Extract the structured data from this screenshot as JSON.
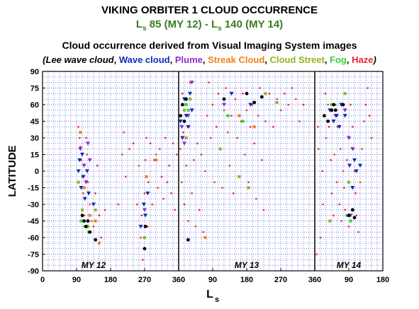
{
  "header": {
    "title": "VIKING ORBITER 1 CLOUD OCCURRENCE",
    "subtitle_ls1": "L",
    "subtitle_s1": "s",
    "subtitle_mid": "85 (MY 12) - L",
    "subtitle_s2": "s",
    "subtitle_end": "140 (MY 14)",
    "description": "Cloud occurrence derived from Visual Imaging System images"
  },
  "legend": {
    "open": "(",
    "close": ")",
    "items": [
      {
        "label": "Lee wave cloud",
        "color": "#000000",
        "italic": true
      },
      {
        "label": "Wave cloud",
        "color": "#0a2fb4"
      },
      {
        "label": "Plume",
        "color": "#8b2fd0"
      },
      {
        "label": "Streak Cloud",
        "color": "#ef7f1a"
      },
      {
        "label": "Cloud Street",
        "color": "#8fb520"
      },
      {
        "label": "Fog",
        "color": "#39d139"
      },
      {
        "label": "Haze",
        "color": "#e8262a"
      }
    ]
  },
  "chart_data": {
    "type": "scatter",
    "title": "VIKING ORBITER 1 CLOUD OCCURRENCE",
    "xlabel": "L",
    "xlabel_sub": "s",
    "ylabel": "LATITUDE",
    "x_ticks": [
      "0",
      "90",
      "180",
      "270",
      "360",
      "90",
      "180",
      "270",
      "360",
      "90",
      "180"
    ],
    "y_ticks": [
      "90",
      "75",
      "60",
      "45",
      "30",
      "15",
      "0",
      "-15",
      "-30",
      "-45",
      "-60",
      "-75",
      "-90"
    ],
    "x_continuous_range": [
      0,
      900
    ],
    "ylim": [
      -90,
      90
    ],
    "grid": true,
    "year_dividers_at_continuous_ls": [
      360,
      720
    ],
    "year_labels": [
      {
        "label": "MY 12",
        "at_continuous_ls": 135
      },
      {
        "label": "MY 13",
        "at_continuous_ls": 540
      },
      {
        "label": "MY 14",
        "at_continuous_ls": 810
      }
    ],
    "series": [
      {
        "name": "Haze",
        "color": "#e8262a",
        "marker": "dot",
        "points": [
          [
            95,
            40
          ],
          [
            98,
            30
          ],
          [
            100,
            22
          ],
          [
            102,
            10
          ],
          [
            105,
            -5
          ],
          [
            108,
            -20
          ],
          [
            110,
            -40
          ],
          [
            115,
            30
          ],
          [
            118,
            15
          ],
          [
            120,
            -10
          ],
          [
            125,
            -30
          ],
          [
            128,
            -55
          ],
          [
            130,
            -45
          ],
          [
            135,
            -50
          ],
          [
            140,
            -20
          ],
          [
            145,
            5
          ],
          [
            150,
            -40
          ],
          [
            155,
            -60
          ],
          [
            165,
            -35
          ],
          [
            200,
            -30
          ],
          [
            210,
            15
          ],
          [
            215,
            35
          ],
          [
            220,
            -5
          ],
          [
            230,
            20
          ],
          [
            240,
            25
          ],
          [
            250,
            -30
          ],
          [
            255,
            5
          ],
          [
            260,
            -60
          ],
          [
            262,
            -40
          ],
          [
            265,
            -80
          ],
          [
            268,
            -70
          ],
          [
            270,
            -20
          ],
          [
            272,
            10
          ],
          [
            275,
            30
          ],
          [
            278,
            -50
          ],
          [
            280,
            -10
          ],
          [
            285,
            25
          ],
          [
            290,
            -30
          ],
          [
            295,
            10
          ],
          [
            300,
            15
          ],
          [
            305,
            -15
          ],
          [
            310,
            20
          ],
          [
            315,
            -5
          ],
          [
            320,
            -25
          ],
          [
            325,
            30
          ],
          [
            330,
            -10
          ],
          [
            335,
            5
          ],
          [
            340,
            -20
          ],
          [
            345,
            25
          ],
          [
            350,
            -35
          ],
          [
            355,
            15
          ],
          [
            362,
            50
          ],
          [
            365,
            20
          ],
          [
            368,
            -10
          ],
          [
            370,
            70
          ],
          [
            372,
            35
          ],
          [
            375,
            -30
          ],
          [
            378,
            60
          ],
          [
            380,
            5
          ],
          [
            385,
            -45
          ],
          [
            388,
            40
          ],
          [
            390,
            80
          ],
          [
            395,
            -20
          ],
          [
            400,
            10
          ],
          [
            405,
            -50
          ],
          [
            410,
            25
          ],
          [
            415,
            -35
          ],
          [
            420,
            15
          ],
          [
            425,
            -55
          ],
          [
            430,
            0
          ],
          [
            435,
            50
          ],
          [
            440,
            80
          ],
          [
            445,
            30
          ],
          [
            450,
            60
          ],
          [
            455,
            -10
          ],
          [
            460,
            40
          ],
          [
            465,
            70
          ],
          [
            470,
            20
          ],
          [
            475,
            -15
          ],
          [
            480,
            55
          ],
          [
            485,
            75
          ],
          [
            490,
            35
          ],
          [
            495,
            5
          ],
          [
            500,
            50
          ],
          [
            505,
            -20
          ],
          [
            510,
            65
          ],
          [
            515,
            30
          ],
          [
            520,
            -5
          ],
          [
            525,
            45
          ],
          [
            530,
            70
          ],
          [
            535,
            15
          ],
          [
            540,
            55
          ],
          [
            545,
            -10
          ],
          [
            550,
            40
          ],
          [
            555,
            60
          ],
          [
            560,
            25
          ],
          [
            565,
            -25
          ],
          [
            570,
            50
          ],
          [
            575,
            75
          ],
          [
            580,
            10
          ],
          [
            585,
            -35
          ],
          [
            590,
            45
          ],
          [
            600,
            70
          ],
          [
            610,
            40
          ],
          [
            620,
            65
          ],
          [
            630,
            55
          ],
          [
            640,
            70
          ],
          [
            650,
            60
          ],
          [
            660,
            75
          ],
          [
            670,
            65
          ],
          [
            680,
            45
          ],
          [
            690,
            60
          ],
          [
            725,
            -75
          ],
          [
            728,
            40
          ],
          [
            730,
            20
          ],
          [
            735,
            -60
          ],
          [
            740,
            0
          ],
          [
            742,
            -30
          ],
          [
            745,
            50
          ],
          [
            748,
            70
          ],
          [
            750,
            30
          ],
          [
            755,
            60
          ],
          [
            758,
            40
          ],
          [
            762,
            10
          ],
          [
            765,
            -20
          ],
          [
            770,
            -40
          ],
          [
            772,
            15
          ],
          [
            775,
            60
          ],
          [
            778,
            -10
          ],
          [
            780,
            40
          ],
          [
            785,
            -30
          ],
          [
            788,
            20
          ],
          [
            790,
            -45
          ],
          [
            795,
            0
          ],
          [
            798,
            -15
          ],
          [
            800,
            -35
          ],
          [
            805,
            10
          ],
          [
            810,
            -50
          ],
          [
            812,
            30
          ],
          [
            815,
            60
          ],
          [
            820,
            40
          ],
          [
            822,
            20
          ],
          [
            825,
            0
          ],
          [
            828,
            -20
          ],
          [
            830,
            -40
          ],
          [
            835,
            -55
          ],
          [
            840,
            -10
          ],
          [
            845,
            20
          ],
          [
            850,
            45
          ],
          [
            855,
            60
          ],
          [
            860,
            75
          ],
          [
            865,
            50
          ],
          [
            870,
            30
          ]
        ]
      },
      {
        "name": "Streak Cloud",
        "color": "#ef7f1a",
        "marker": "square",
        "points": [
          [
            100,
            35
          ],
          [
            110,
            -15
          ],
          [
            125,
            -40
          ],
          [
            140,
            -45
          ],
          [
            150,
            -65
          ],
          [
            275,
            -5
          ],
          [
            300,
            10
          ],
          [
            380,
            30
          ],
          [
            430,
            -60
          ],
          [
            520,
            50
          ],
          [
            560,
            40
          ]
        ]
      },
      {
        "name": "Cloud Street",
        "color": "#8fb520",
        "marker": "square",
        "points": [
          [
            95,
            -10
          ],
          [
            105,
            -35
          ],
          [
            120,
            -50
          ],
          [
            140,
            -35
          ],
          [
            270,
            -60
          ],
          [
            375,
            55
          ],
          [
            390,
            65
          ],
          [
            470,
            20
          ],
          [
            520,
            -5
          ],
          [
            545,
            -15
          ],
          [
            590,
            70
          ],
          [
            620,
            62
          ],
          [
            760,
            -45
          ],
          [
            800,
            70
          ],
          [
            810,
            -10
          ],
          [
            820,
            -35
          ]
        ]
      },
      {
        "name": "Fog",
        "color": "#39d139",
        "marker": "square",
        "points": [
          [
            102,
            -45
          ],
          [
            112,
            -50
          ],
          [
            122,
            -55
          ],
          [
            380,
            60
          ],
          [
            385,
            55
          ],
          [
            490,
            50
          ],
          [
            530,
            45
          ],
          [
            765,
            60
          ],
          [
            805,
            -40
          ],
          [
            815,
            -45
          ]
        ]
      },
      {
        "name": "Plume",
        "color": "#8b2fd0",
        "marker": "triangle",
        "points": [
          [
            100,
            20
          ],
          [
            110,
            5
          ],
          [
            115,
            -10
          ],
          [
            120,
            25
          ],
          [
            125,
            10
          ],
          [
            270,
            -35
          ],
          [
            368,
            40
          ],
          [
            375,
            25
          ],
          [
            385,
            50
          ],
          [
            395,
            80
          ],
          [
            480,
            60
          ],
          [
            775,
            50
          ],
          [
            800,
            55
          ],
          [
            810,
            30
          ],
          [
            815,
            -40
          ],
          [
            820,
            20
          ]
        ]
      },
      {
        "name": "Wave cloud",
        "color": "#0a2fb4",
        "marker": "triangle",
        "points": [
          [
            95,
            0
          ],
          [
            98,
            10
          ],
          [
            102,
            -15
          ],
          [
            105,
            15
          ],
          [
            108,
            -5
          ],
          [
            112,
            -25
          ],
          [
            118,
            0
          ],
          [
            122,
            -20
          ],
          [
            135,
            -30
          ],
          [
            260,
            -50
          ],
          [
            268,
            -30
          ],
          [
            272,
            -40
          ],
          [
            278,
            -20
          ],
          [
            365,
            45
          ],
          [
            370,
            30
          ],
          [
            375,
            65
          ],
          [
            380,
            50
          ],
          [
            385,
            40
          ],
          [
            390,
            70
          ],
          [
            395,
            55
          ],
          [
            500,
            70
          ],
          [
            550,
            60
          ],
          [
            760,
            55
          ],
          [
            770,
            45
          ],
          [
            778,
            50
          ],
          [
            785,
            40
          ],
          [
            790,
            60
          ],
          [
            800,
            50
          ],
          [
            812,
            5
          ],
          [
            820,
            -15
          ],
          [
            825,
            10
          ],
          [
            830,
            0
          ],
          [
            840,
            5
          ]
        ]
      },
      {
        "name": "Lee wave cloud",
        "color": "#000000",
        "marker": "dot",
        "points": [
          [
            105,
            -40
          ],
          [
            110,
            -45
          ],
          [
            115,
            -50
          ],
          [
            120,
            -45
          ],
          [
            125,
            -55
          ],
          [
            140,
            -62
          ],
          [
            270,
            -70
          ],
          [
            272,
            -50
          ],
          [
            365,
            50
          ],
          [
            370,
            60
          ],
          [
            375,
            45
          ],
          [
            380,
            65
          ],
          [
            385,
            -62
          ],
          [
            480,
            65
          ],
          [
            540,
            70
          ],
          [
            560,
            62
          ],
          [
            580,
            67
          ],
          [
            745,
            50
          ],
          [
            755,
            45
          ],
          [
            765,
            55
          ],
          [
            770,
            60
          ],
          [
            775,
            55
          ],
          [
            795,
            60
          ],
          [
            810,
            -40
          ],
          [
            820,
            -35
          ],
          [
            825,
            -42
          ]
        ]
      }
    ]
  }
}
